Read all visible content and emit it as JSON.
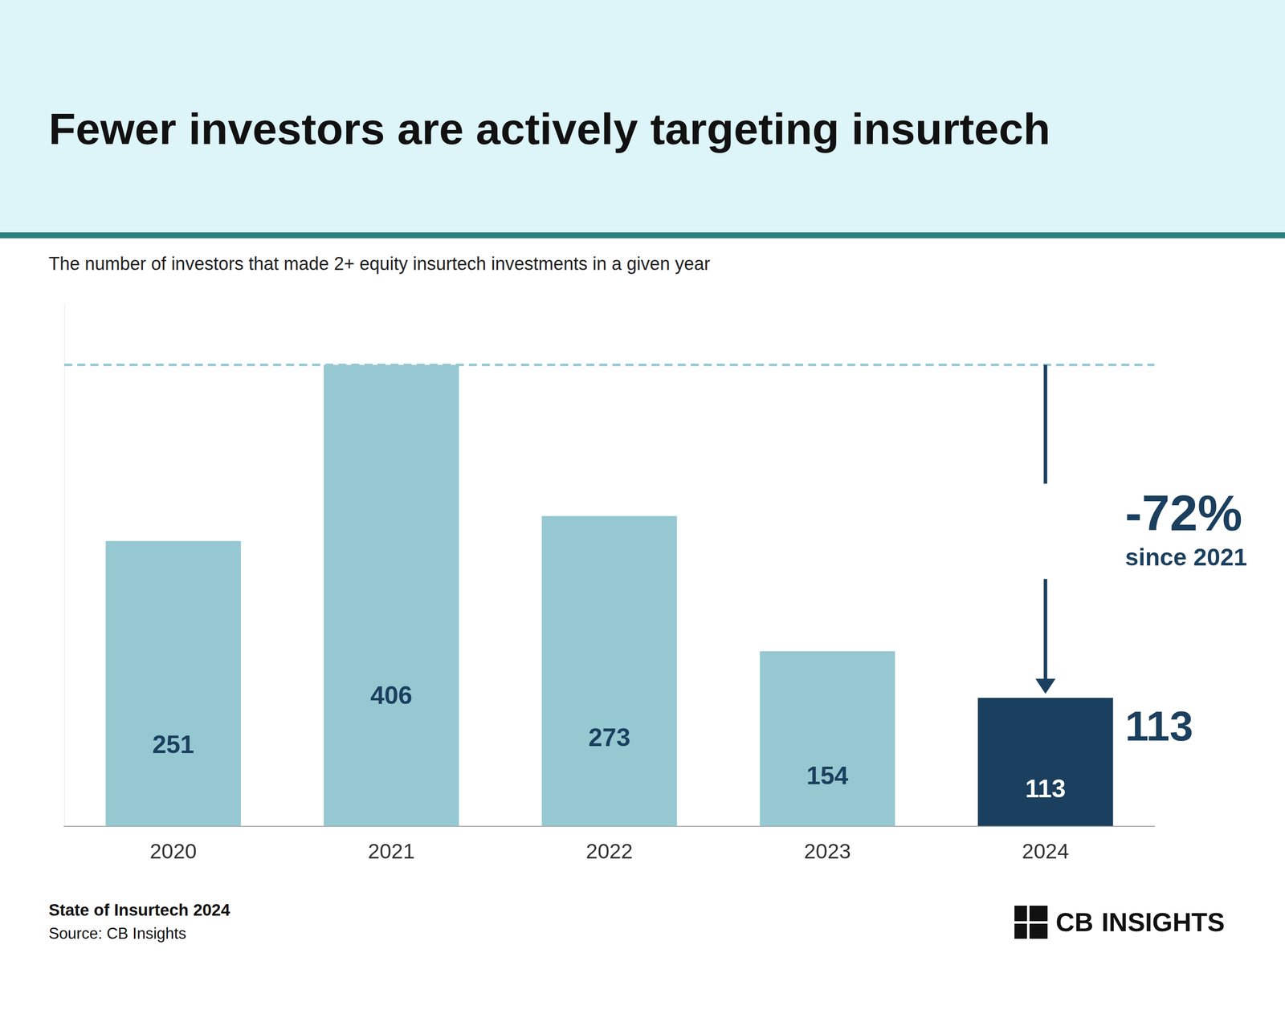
{
  "chart_data": {
    "type": "bar",
    "title": "Fewer investors are actively targeting insurtech",
    "subtitle": "The number of investors that made 2+ equity insurtech investments in a given year",
    "categories": [
      "2020",
      "2021",
      "2022",
      "2023",
      "2024"
    ],
    "values": [
      251,
      406,
      273,
      154,
      113
    ],
    "colors": [
      "#96c8d2",
      "#96c8d2",
      "#96c8d2",
      "#96c8d2",
      "#1b3f5e"
    ],
    "ylim": [
      0,
      460
    ],
    "yticks": [],
    "tick_labels": "x",
    "grid": false,
    "data_labels": true,
    "reference_line": {
      "value": 406,
      "color": "#96c8d2",
      "line_style": "dashed"
    },
    "annotation": {
      "category": "2024",
      "from": 406,
      "to": 113,
      "text": "-72%",
      "subtext": "since 2021",
      "label": "113",
      "color": "#1b3f5e"
    },
    "header_color": "#ddf4f8",
    "divider_color": "#2a8080",
    "footer": [
      "State of Insurtech 2024",
      "Source: CB Insights"
    ],
    "logo": [
      "CB",
      "INSIGHTS"
    ]
  }
}
